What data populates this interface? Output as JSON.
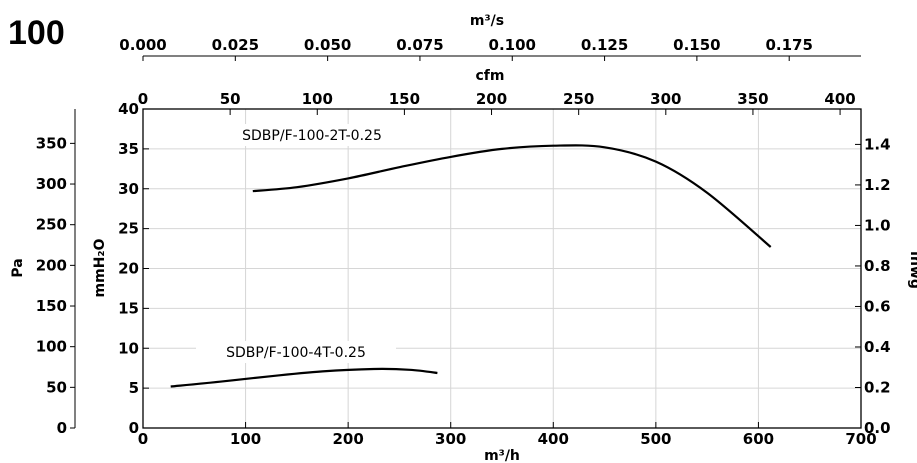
{
  "chart_data": {
    "type": "line",
    "model": "100",
    "axes": {
      "bottom": {
        "label": "m³/h",
        "range": [
          0,
          700
        ],
        "ticks": [
          "0",
          "100",
          "200",
          "300",
          "400",
          "500",
          "600",
          "700"
        ]
      },
      "left_inner": {
        "label": "mmH₂O",
        "range": [
          0,
          40
        ],
        "ticks": [
          "0",
          "5",
          "10",
          "15",
          "20",
          "25",
          "30",
          "35",
          "40"
        ]
      },
      "left_outer": {
        "label": "Pa",
        "ticks": [
          "0",
          "50",
          "100",
          "150",
          "200",
          "250",
          "300",
          "350"
        ]
      },
      "right": {
        "label": "inwg",
        "ticks": [
          "0.0",
          "0.2",
          "0.4",
          "0.6",
          "0.8",
          "1.0",
          "1.2",
          "1.4"
        ]
      },
      "top_cfm": {
        "label": "cfm",
        "ticks": [
          "0",
          "50",
          "100",
          "150",
          "200",
          "250",
          "300",
          "350",
          "400"
        ]
      },
      "top_m3s": {
        "label": "m³/s",
        "ticks": [
          "0.000",
          "0.025",
          "0.050",
          "0.075",
          "0.100",
          "0.125",
          "0.150",
          "0.175"
        ]
      }
    },
    "grid": true,
    "series": [
      {
        "name": "SDBP/F-100-2T-0.25",
        "x": [
          107,
          150,
          200,
          250,
          300,
          350,
          400,
          450,
          500,
          550,
          612
        ],
        "y": [
          29.7,
          30.2,
          31.3,
          32.7,
          34.0,
          35.0,
          35.4,
          35.2,
          33.4,
          29.5,
          22.7
        ]
      },
      {
        "name": "SDBP/F-100-4T-0.25",
        "x": [
          27,
          75,
          125,
          175,
          225,
          260,
          287
        ],
        "y": [
          5.2,
          5.8,
          6.5,
          7.1,
          7.4,
          7.3,
          6.9
        ]
      }
    ]
  }
}
